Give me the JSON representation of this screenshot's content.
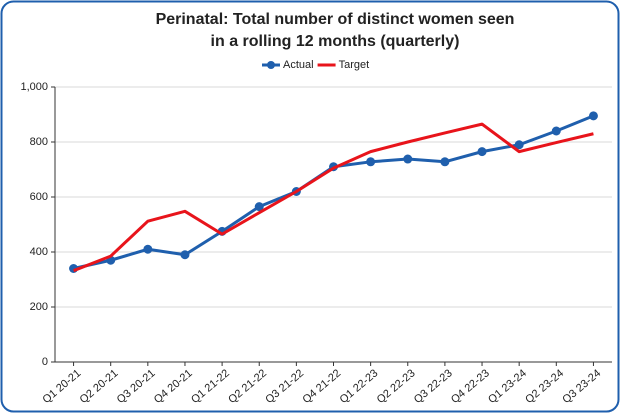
{
  "chart_data": {
    "type": "line",
    "title": [
      "Perinatal: Total number of distinct women seen",
      "in a rolling 12 months (quarterly)"
    ],
    "categories": [
      "Q1 20-21",
      "Q2 20-21",
      "Q3 20-21",
      "Q4 20-21",
      "Q1 21-22",
      "Q2 21-22",
      "Q3 21-22",
      "Q4 21-22",
      "Q1 22-23",
      "Q2 22-23",
      "Q3 22-23",
      "Q4 22-23",
      "Q1 23-24",
      "Q2 23-24",
      "Q3 23-24"
    ],
    "series": [
      {
        "name": "Actual",
        "color": "#1f5fad",
        "markers": true,
        "values": [
          340,
          370,
          410,
          390,
          475,
          565,
          620,
          710,
          728,
          738,
          728,
          765,
          790,
          840,
          895
        ]
      },
      {
        "name": "Target",
        "color": "#e8141b",
        "markers": false,
        "values": [
          332,
          385,
          512,
          548,
          465,
          543,
          620,
          705,
          765,
          800,
          833,
          865,
          765,
          798,
          830
        ]
      }
    ],
    "ylim": [
      0,
      1000
    ],
    "yticks": [
      0,
      200,
      400,
      600,
      800,
      {
        "value": 1000,
        "label": "1,000"
      }
    ],
    "grid": true,
    "legend": "top"
  }
}
